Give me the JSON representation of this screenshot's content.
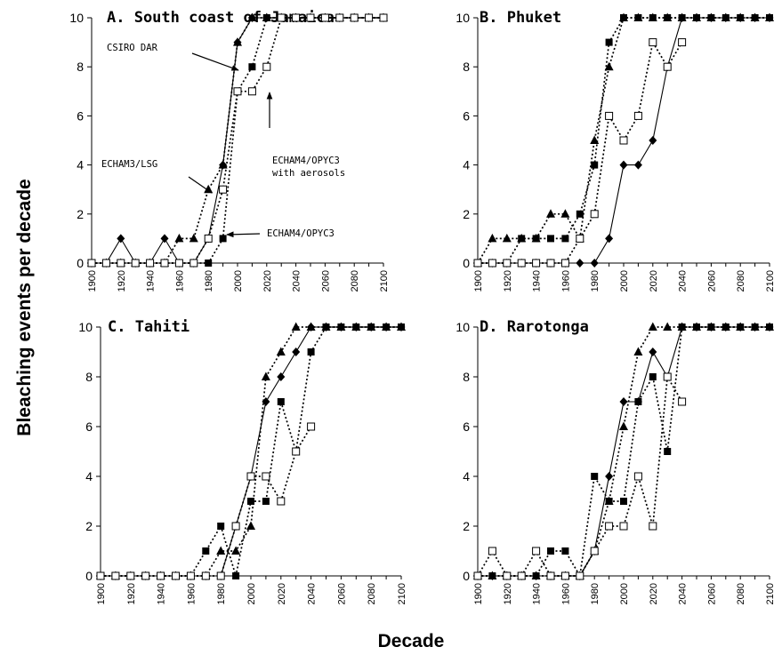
{
  "figure": {
    "ylabel": "Bleaching events per decade",
    "xlabel": "Decade"
  },
  "chart_data": [
    {
      "type": "line",
      "title": "A. South coast of Jamaica",
      "x": [
        1900,
        1910,
        1920,
        1930,
        1940,
        1950,
        1960,
        1970,
        1980,
        1990,
        2000,
        2010,
        2020,
        2030,
        2040,
        2050,
        2060,
        2070,
        2080,
        2090,
        2100
      ],
      "ylim": [
        0,
        10
      ],
      "yticks": [
        0,
        2,
        4,
        6,
        8,
        10
      ],
      "xticks": [
        1900,
        1920,
        1940,
        1960,
        1980,
        2000,
        2020,
        2040,
        2060,
        2080,
        2100
      ],
      "series": [
        {
          "name": "CSIRO DAR",
          "marker": "diamond",
          "line": "solid",
          "values": [
            0,
            0,
            1,
            0,
            0,
            1,
            0,
            0,
            1,
            4,
            9,
            10,
            10,
            10,
            10,
            10,
            10,
            10,
            10,
            10,
            10
          ]
        },
        {
          "name": "ECHAM3/LSG",
          "marker": "triangle",
          "line": "dotted",
          "values": [
            0,
            0,
            0,
            0,
            0,
            0,
            1,
            1,
            3,
            4,
            9,
            10,
            10,
            10,
            10,
            10,
            10,
            10,
            10,
            10,
            10
          ]
        },
        {
          "name": "ECHAM4/OPYC3",
          "marker": "square-filled",
          "line": "dotted",
          "values": [
            0,
            0,
            0,
            0,
            0,
            0,
            0,
            0,
            0,
            1,
            7,
            8,
            10,
            10,
            10,
            10,
            10,
            10,
            10,
            10,
            10
          ]
        },
        {
          "name": "ECHAM4/OPYC3 with aerosols",
          "marker": "square-open",
          "line": "dotted",
          "values": [
            0,
            0,
            0,
            0,
            0,
            0,
            0,
            0,
            1,
            3,
            7,
            7,
            8,
            10,
            10,
            10,
            10,
            10,
            10,
            10,
            10
          ]
        }
      ],
      "annotations": [
        {
          "text": "CSIRO DAR",
          "target_series": "CSIRO DAR"
        },
        {
          "text": "ECHAM3/LSG",
          "target_series": "ECHAM3/LSG"
        },
        {
          "text": "ECHAM4/OPYC3",
          "target_series": "ECHAM4/OPYC3"
        },
        {
          "lines": [
            "ECHAM4/OPYC3",
            "with aerosols"
          ],
          "target_series": "ECHAM4/OPYC3 with aerosols"
        }
      ]
    },
    {
      "type": "line",
      "title": "B. Phuket",
      "x": [
        1900,
        1910,
        1920,
        1930,
        1940,
        1950,
        1960,
        1970,
        1980,
        1990,
        2000,
        2010,
        2020,
        2030,
        2040,
        2050,
        2060,
        2070,
        2080,
        2090,
        2100
      ],
      "ylim": [
        0,
        10
      ],
      "yticks": [
        0,
        2,
        4,
        6,
        8,
        10
      ],
      "xticks": [
        1900,
        1920,
        1940,
        1960,
        1980,
        2000,
        2020,
        2040,
        2060,
        2080,
        2100
      ],
      "series": [
        {
          "name": "CSIRO DAR",
          "marker": "diamond",
          "line": "solid",
          "values": [
            0,
            0,
            0,
            0,
            0,
            0,
            0,
            0,
            0,
            1,
            4,
            4,
            5,
            8,
            10,
            10,
            10,
            10,
            10,
            10,
            10
          ]
        },
        {
          "name": "ECHAM3/LSG",
          "marker": "triangle",
          "line": "dotted",
          "values": [
            0,
            1,
            1,
            1,
            1,
            2,
            2,
            1,
            5,
            8,
            10,
            10,
            10,
            10,
            10,
            10,
            10,
            10,
            10,
            10,
            10
          ]
        },
        {
          "name": "ECHAM4/OPYC3",
          "marker": "square-filled",
          "line": "dotted",
          "values": [
            0,
            0,
            0,
            1,
            1,
            1,
            1,
            2,
            4,
            9,
            10,
            10,
            10,
            10,
            10,
            10,
            10,
            10,
            10,
            10,
            10
          ]
        },
        {
          "name": "ECHAM4/OPYC3 with aerosols",
          "marker": "square-open",
          "line": "dotted",
          "values": [
            0,
            0,
            0,
            0,
            0,
            0,
            0,
            1,
            2,
            6,
            5,
            6,
            9,
            8,
            9,
            null,
            null,
            null,
            null,
            null,
            null
          ]
        }
      ]
    },
    {
      "type": "line",
      "title": "C. Tahiti",
      "x": [
        1900,
        1910,
        1920,
        1930,
        1940,
        1950,
        1960,
        1970,
        1980,
        1990,
        2000,
        2010,
        2020,
        2030,
        2040,
        2050,
        2060,
        2070,
        2080,
        2090,
        2100
      ],
      "ylim": [
        0,
        10
      ],
      "yticks": [
        0,
        2,
        4,
        6,
        8,
        10
      ],
      "xticks": [
        1900,
        1920,
        1940,
        1960,
        1980,
        2000,
        2020,
        2040,
        2060,
        2080,
        2100
      ],
      "series": [
        {
          "name": "CSIRO DAR",
          "marker": "diamond",
          "line": "solid",
          "values": [
            0,
            0,
            0,
            0,
            0,
            0,
            0,
            0,
            0,
            2,
            4,
            7,
            8,
            9,
            10,
            10,
            10,
            10,
            10,
            10,
            10
          ]
        },
        {
          "name": "ECHAM3/LSG",
          "marker": "triangle",
          "line": "dotted",
          "values": [
            0,
            0,
            0,
            0,
            0,
            0,
            0,
            0,
            1,
            1,
            2,
            8,
            9,
            10,
            10,
            10,
            10,
            10,
            10,
            10,
            10
          ]
        },
        {
          "name": "ECHAM4/OPYC3",
          "marker": "square-filled",
          "line": "dotted",
          "values": [
            0,
            0,
            0,
            0,
            0,
            0,
            0,
            1,
            2,
            0,
            3,
            3,
            7,
            5,
            9,
            10,
            10,
            10,
            10,
            10,
            10
          ]
        },
        {
          "name": "ECHAM4/OPYC3 with aerosols",
          "marker": "square-open",
          "line": "dotted",
          "values": [
            0,
            0,
            0,
            0,
            0,
            0,
            0,
            0,
            0,
            2,
            4,
            4,
            3,
            5,
            6,
            null,
            null,
            null,
            null,
            null,
            null
          ]
        }
      ]
    },
    {
      "type": "line",
      "title": "D. Rarotonga",
      "x": [
        1900,
        1910,
        1920,
        1930,
        1940,
        1950,
        1960,
        1970,
        1980,
        1990,
        2000,
        2010,
        2020,
        2030,
        2040,
        2050,
        2060,
        2070,
        2080,
        2090,
        2100
      ],
      "ylim": [
        0,
        10
      ],
      "yticks": [
        0,
        2,
        4,
        6,
        8,
        10
      ],
      "xticks": [
        1900,
        1920,
        1940,
        1960,
        1980,
        2000,
        2020,
        2040,
        2060,
        2080,
        2100
      ],
      "series": [
        {
          "name": "CSIRO DAR",
          "marker": "diamond",
          "line": "solid",
          "values": [
            0,
            0,
            0,
            0,
            0,
            0,
            0,
            0,
            1,
            4,
            7,
            7,
            9,
            8,
            10,
            10,
            10,
            10,
            10,
            10,
            10
          ]
        },
        {
          "name": "ECHAM3/LSG",
          "marker": "triangle",
          "line": "dotted",
          "values": [
            0,
            0,
            0,
            0,
            0,
            0,
            0,
            0,
            1,
            3,
            6,
            9,
            10,
            10,
            10,
            10,
            10,
            10,
            10,
            10,
            10
          ]
        },
        {
          "name": "ECHAM4/OPYC3",
          "marker": "square-filled",
          "line": "dotted",
          "values": [
            0,
            0,
            0,
            0,
            0,
            1,
            1,
            0,
            4,
            3,
            3,
            7,
            8,
            5,
            10,
            10,
            10,
            10,
            10,
            10,
            10
          ]
        },
        {
          "name": "ECHAM4/OPYC3 with aerosols",
          "marker": "square-open",
          "line": "dotted",
          "values": [
            0,
            1,
            0,
            0,
            1,
            0,
            0,
            0,
            1,
            2,
            2,
            4,
            2,
            8,
            7,
            null,
            null,
            null,
            null,
            null,
            null
          ]
        }
      ]
    }
  ]
}
